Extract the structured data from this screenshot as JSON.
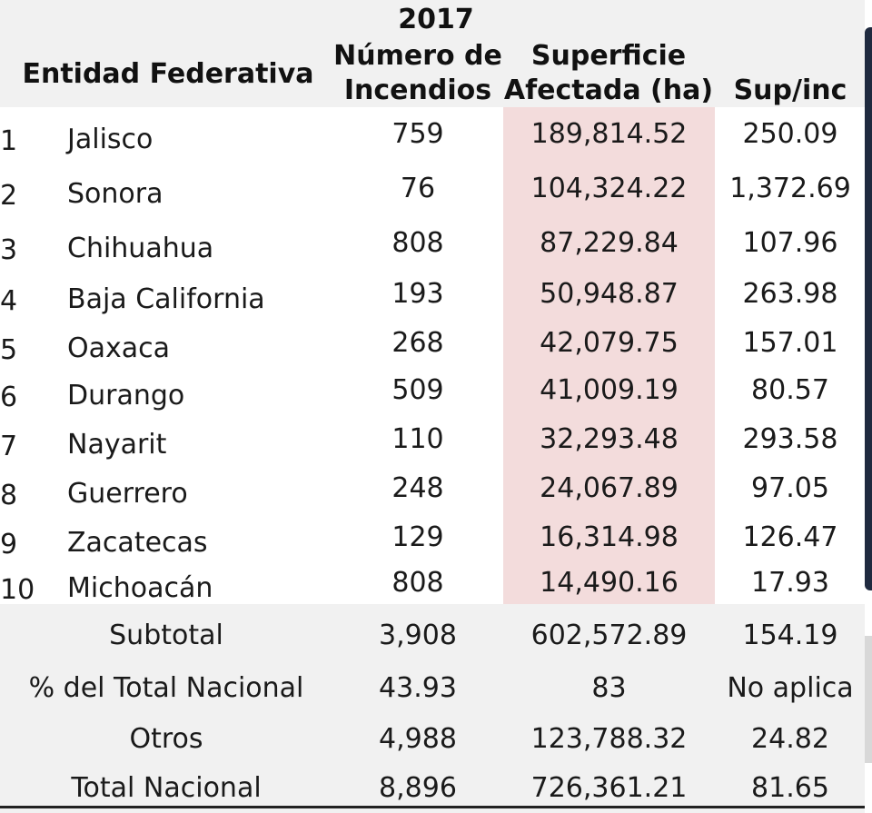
{
  "header": {
    "year": "2017",
    "entity": "Entidad Federativa",
    "fires_line1": "Número de",
    "fires_line2": "Incendios",
    "area_line1": "Superficie",
    "area_line2": "Afectada (ha)",
    "ratio": "Sup/inc"
  },
  "rows": [
    {
      "rank": "1",
      "state": "Jalisco",
      "fires": "759",
      "area": "189,814.52",
      "ratio": "250.09"
    },
    {
      "rank": "2",
      "state": "Sonora",
      "fires": "76",
      "area": "104,324.22",
      "ratio": "1,372.69"
    },
    {
      "rank": "3",
      "state": "Chihuahua",
      "fires": "808",
      "area": "87,229.84",
      "ratio": "107.96"
    },
    {
      "rank": "4",
      "state": "Baja California",
      "fires": "193",
      "area": "50,948.87",
      "ratio": "263.98"
    },
    {
      "rank": "5",
      "state": "Oaxaca",
      "fires": "268",
      "area": "42,079.75",
      "ratio": "157.01"
    },
    {
      "rank": "6",
      "state": "Durango",
      "fires": "509",
      "area": "41,009.19",
      "ratio": "80.57"
    },
    {
      "rank": "7",
      "state": "Nayarit",
      "fires": "110",
      "area": "32,293.48",
      "ratio": "293.58"
    },
    {
      "rank": "8",
      "state": "Guerrero",
      "fires": "248",
      "area": "24,067.89",
      "ratio": "97.05"
    },
    {
      "rank": "9",
      "state": "Zacatecas",
      "fires": "129",
      "area": "16,314.98",
      "ratio": "126.47"
    },
    {
      "rank": "10",
      "state": "Michoacán",
      "fires": "808",
      "area": "14,490.16",
      "ratio": "17.93"
    }
  ],
  "summary": [
    {
      "label": "Subtotal",
      "fires": "3,908",
      "area": "602,572.89",
      "ratio": "154.19"
    },
    {
      "label": "% del Total Nacional",
      "fires": "43.93",
      "area": "83",
      "ratio": "No aplica"
    },
    {
      "label": "Otros",
      "fires": "4,988",
      "area": "123,788.32",
      "ratio": "24.82"
    },
    {
      "label": "Total Nacional",
      "fires": "8,896",
      "area": "726,361.21",
      "ratio": "81.65"
    }
  ]
}
